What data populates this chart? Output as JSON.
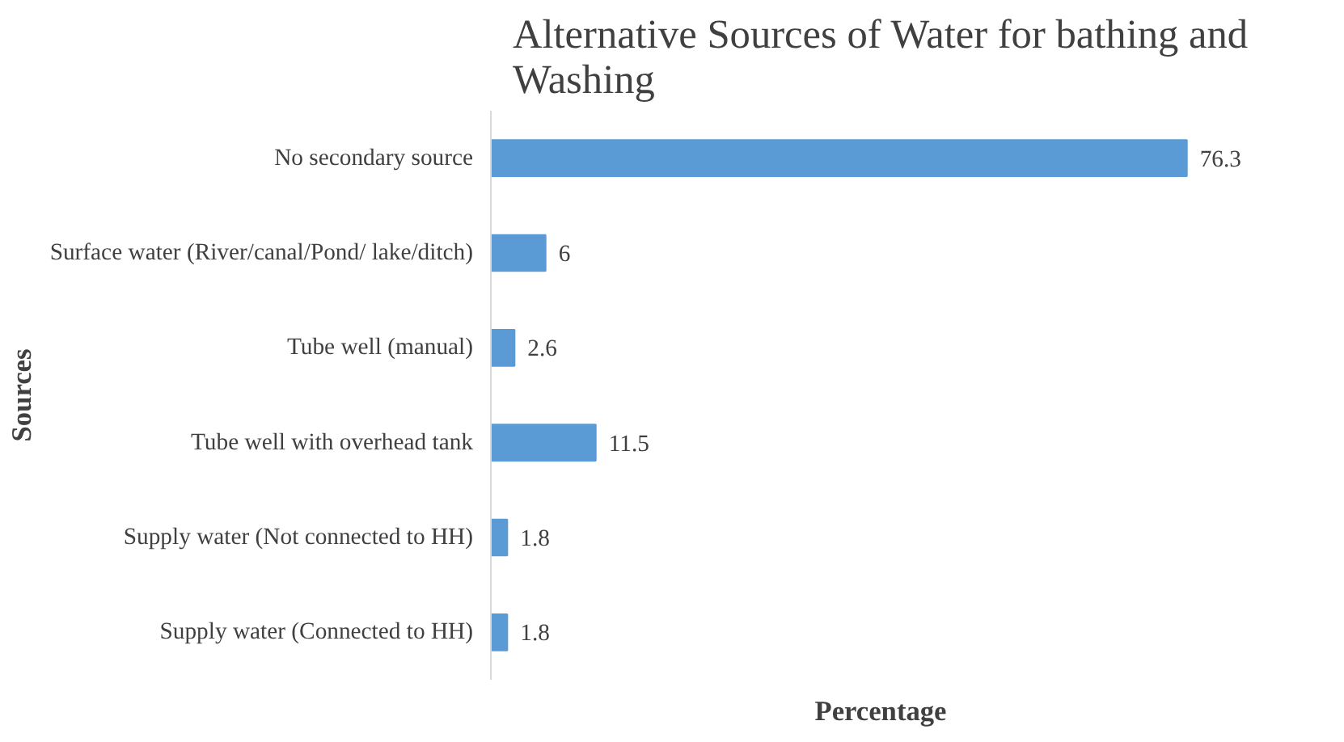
{
  "chart_data": {
    "type": "bar",
    "orientation": "horizontal",
    "title": "Alternative Sources of Water for bathing and Washing",
    "xlabel": "Percentage",
    "ylabel": "Sources",
    "categories": [
      "No secondary source",
      "Surface water (River/canal/Pond/ lake/ditch)",
      "Tube well (manual)",
      "Tube well with overhead tank",
      "Supply water (Not connected to HH)",
      "Supply water (Connected to HH)"
    ],
    "values": [
      76.3,
      6,
      2.6,
      11.5,
      1.8,
      1.8
    ],
    "color": "#5b9bd5",
    "data_labels": true,
    "grid": false,
    "tick_labels": "y"
  }
}
